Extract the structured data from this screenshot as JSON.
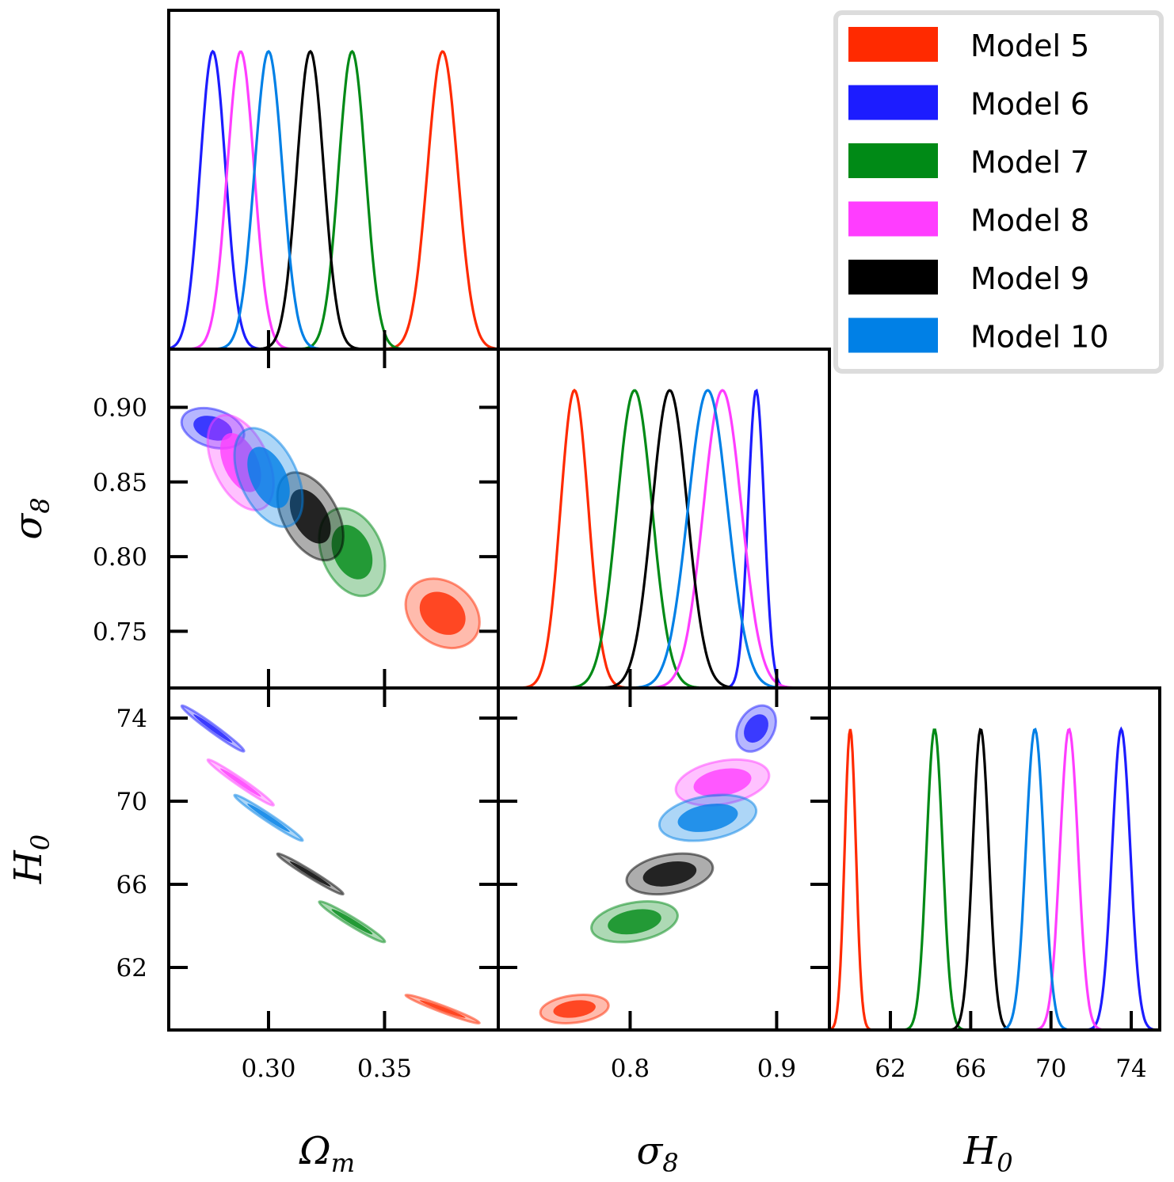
{
  "chart_data": {
    "type": "corner",
    "title": "",
    "parameters": [
      {
        "key": "Om",
        "label": "Ω",
        "sub": "m",
        "range": [
          0.257,
          0.399
        ],
        "ticks": [
          0.3,
          0.35
        ],
        "tick_labels": [
          "0.30",
          "0.35"
        ]
      },
      {
        "key": "s8",
        "label": "σ",
        "sub": "8",
        "range": [
          0.71,
          0.936
        ],
        "ticks": [
          0.8,
          0.9
        ],
        "tick_labels": [
          "0.8",
          "0.9"
        ],
        "y_range": [
          0.712,
          0.939
        ],
        "y_ticks": [
          0.75,
          0.8,
          0.85,
          0.9
        ],
        "y_tick_labels": [
          "0.75",
          "0.80",
          "0.85",
          "0.90"
        ]
      },
      {
        "key": "H0",
        "label": "H",
        "sub": "0",
        "range": [
          58.96,
          75.42
        ],
        "ticks": [
          62,
          66,
          70,
          74
        ],
        "tick_labels": [
          "62",
          "66",
          "70",
          "74"
        ],
        "y_range": [
          58.99,
          75.45
        ],
        "y_ticks": [
          62,
          66,
          70,
          74
        ],
        "y_tick_labels": [
          "62",
          "66",
          "70",
          "74"
        ]
      }
    ],
    "series": [
      {
        "name": "Model 5",
        "color": "#ff2a00",
        "Om": {
          "mean": 0.375,
          "sd": 0.0065
        },
        "s8": {
          "mean": 0.762,
          "sd": 0.0095
        },
        "H0": {
          "mean": 60.0,
          "sd": 0.28
        },
        "corr_Om_s8": -0.25,
        "corr_Om_H0": -0.97,
        "corr_s8_H0": 0.25
      },
      {
        "name": "Model 6",
        "color": "#1c1cff",
        "Om": {
          "mean": 0.276,
          "sd": 0.0055
        },
        "s8": {
          "mean": 0.886,
          "sd": 0.0055
        },
        "H0": {
          "mean": 73.5,
          "sd": 0.45
        },
        "corr_Om_s8": -0.3,
        "corr_Om_H0": -0.98,
        "corr_s8_H0": 0.3
      },
      {
        "name": "Model 7",
        "color": "#008a16",
        "Om": {
          "mean": 0.336,
          "sd": 0.0058
        },
        "s8": {
          "mean": 0.803,
          "sd": 0.012
        },
        "H0": {
          "mean": 64.2,
          "sd": 0.4
        },
        "corr_Om_s8": -0.3,
        "corr_Om_H0": -0.97,
        "corr_s8_H0": 0.3
      },
      {
        "name": "Model 8",
        "color": "#ff3dff",
        "Om": {
          "mean": 0.288,
          "sd": 0.0058
        },
        "s8": {
          "mean": 0.863,
          "sd": 0.013
        },
        "H0": {
          "mean": 70.9,
          "sd": 0.45
        },
        "corr_Om_s8": -0.45,
        "corr_Om_H0": -0.98,
        "corr_s8_H0": 0.3
      },
      {
        "name": "Model 9",
        "color": "#000000",
        "Om": {
          "mean": 0.318,
          "sd": 0.0058
        },
        "s8": {
          "mean": 0.827,
          "sd": 0.012
        },
        "H0": {
          "mean": 66.5,
          "sd": 0.4
        },
        "corr_Om_s8": -0.45,
        "corr_Om_H0": -0.98,
        "corr_s8_H0": 0.3
      },
      {
        "name": "Model 10",
        "color": "#0080e6",
        "Om": {
          "mean": 0.3,
          "sd": 0.006
        },
        "s8": {
          "mean": 0.853,
          "sd": 0.0135
        },
        "H0": {
          "mean": 69.2,
          "sd": 0.45
        },
        "corr_Om_s8": -0.45,
        "corr_Om_H0": -0.98,
        "corr_s8_H0": 0.3
      }
    ],
    "legend": {
      "placement": "top-right",
      "entries": [
        "Model 5",
        "Model 6",
        "Model 7",
        "Model 8",
        "Model 9",
        "Model 10"
      ]
    },
    "contour_levels": [
      "68%",
      "95%"
    ],
    "grid": false
  }
}
